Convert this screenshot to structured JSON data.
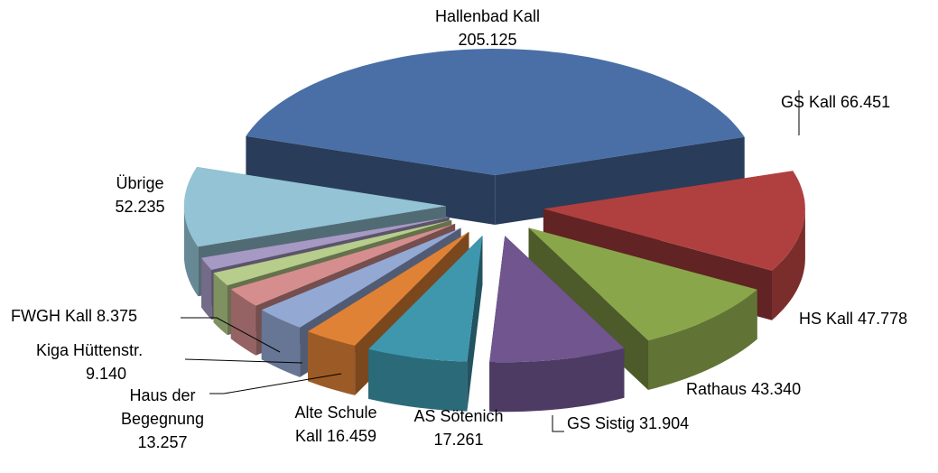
{
  "chart_data": {
    "type": "pie3d",
    "categories": [
      "Hallenbad Kall",
      "GS Kall",
      "HS Kall",
      "Rathaus",
      "GS Sistig",
      "AS Sötenich",
      "Alte Schule Kall",
      "Haus der Begegnung",
      "Kiga Hüttenstr.",
      "FWGH Kall",
      "Übrige"
    ],
    "values": [
      205125,
      66451,
      47778,
      43340,
      31904,
      17261,
      16459,
      13257,
      9140,
      8375,
      52235
    ],
    "value_labels": [
      "205.125",
      "66.451",
      "47.778",
      "43.340",
      "31.904",
      "17.261",
      "16.459",
      "13.257",
      "9.140",
      "8.375",
      "52.235"
    ],
    "colors": [
      "#4a6fa6",
      "#b0403f",
      "#8aa64b",
      "#70558f",
      "#3e97ad",
      "#df8236",
      "#93a8d3",
      "#d58e8d",
      "#b6cd8b",
      "#a699c3",
      "#93c3d5"
    ]
  }
}
